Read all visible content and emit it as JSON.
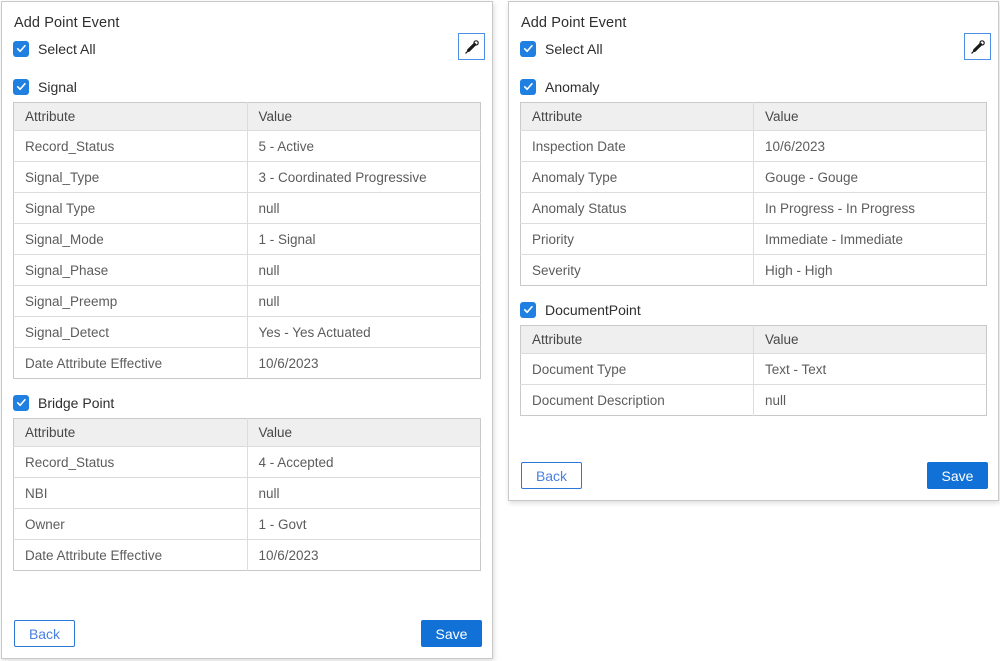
{
  "colors": {
    "checkbox_blue": "#1f80e2",
    "save_button_blue": "#1271d6",
    "back_button_blue": "#2d76da",
    "table_header_bg": "#efefef",
    "panel_border": "#c9c9c9"
  },
  "panels": [
    {
      "title": "Add Point Event",
      "select_all_label": "Select All",
      "select_all_checked": true,
      "eyedropper_icon": "eyedropper",
      "groups": [
        {
          "label": "Signal",
          "checked": true,
          "headers": {
            "attribute": "Attribute",
            "value": "Value"
          },
          "rows": [
            {
              "attribute": "Record_Status",
              "value": "5 - Active"
            },
            {
              "attribute": "Signal_Type",
              "value": "3 - Coordinated Progressive"
            },
            {
              "attribute": "Signal Type",
              "value": "null"
            },
            {
              "attribute": "Signal_Mode",
              "value": "1 - Signal"
            },
            {
              "attribute": "Signal_Phase",
              "value": "null"
            },
            {
              "attribute": "Signal_Preemp",
              "value": "null"
            },
            {
              "attribute": "Signal_Detect",
              "value": "Yes - Yes Actuated"
            },
            {
              "attribute": "Date Attribute Effective",
              "value": "10/6/2023"
            }
          ]
        },
        {
          "label": "Bridge Point",
          "checked": true,
          "headers": {
            "attribute": "Attribute",
            "value": "Value"
          },
          "rows": [
            {
              "attribute": "Record_Status",
              "value": "4 - Accepted"
            },
            {
              "attribute": "NBI",
              "value": "null"
            },
            {
              "attribute": "Owner",
              "value": "1 - Govt"
            },
            {
              "attribute": "Date Attribute Effective",
              "value": "10/6/2023"
            }
          ]
        }
      ],
      "back_label": "Back",
      "save_label": "Save"
    },
    {
      "title": "Add Point Event",
      "select_all_label": "Select All",
      "select_all_checked": true,
      "eyedropper_icon": "eyedropper",
      "groups": [
        {
          "label": "Anomaly",
          "checked": true,
          "headers": {
            "attribute": "Attribute",
            "value": "Value"
          },
          "rows": [
            {
              "attribute": "Inspection Date",
              "value": "10/6/2023"
            },
            {
              "attribute": "Anomaly Type",
              "value": "Gouge - Gouge"
            },
            {
              "attribute": "Anomaly Status",
              "value": "In Progress - In Progress"
            },
            {
              "attribute": "Priority",
              "value": "Immediate - Immediate"
            },
            {
              "attribute": "Severity",
              "value": "High - High"
            }
          ]
        },
        {
          "label": "DocumentPoint",
          "checked": true,
          "headers": {
            "attribute": "Attribute",
            "value": "Value"
          },
          "rows": [
            {
              "attribute": "Document Type",
              "value": "Text - Text"
            },
            {
              "attribute": "Document Description",
              "value": "null"
            }
          ]
        }
      ],
      "back_label": "Back",
      "save_label": "Save"
    }
  ]
}
